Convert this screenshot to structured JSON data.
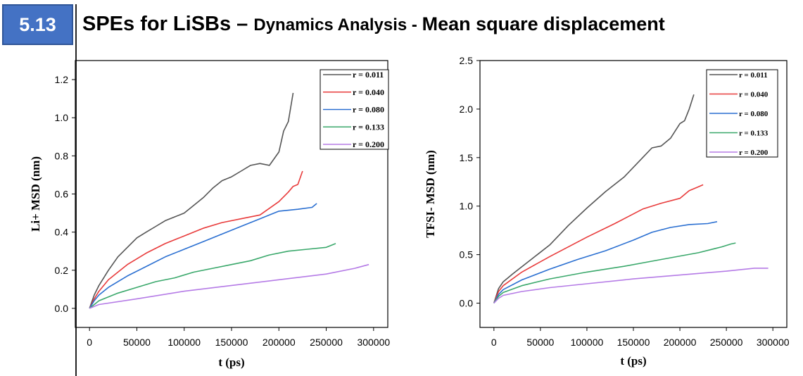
{
  "slide": {
    "number": "5.13",
    "title_main": "SPEs for LiSBs",
    "title_dash": " – ",
    "title_sub": "Dynamics Analysis - ",
    "title_topic": " Mean square displacement"
  },
  "colors": {
    "badge": "#4472c4",
    "r0011": "#555555",
    "r0040": "#e83b3b",
    "r0080": "#2a6fd1",
    "r0133": "#3aa86b",
    "r0200": "#b57be6"
  },
  "chart_data": [
    {
      "type": "line",
      "title": "",
      "xlabel": "t (ps)",
      "ylabel": "Li+ MSD (nm)",
      "xlim": [
        -15000,
        315000
      ],
      "ylim": [
        -0.1,
        1.3
      ],
      "xticks": [
        0,
        50000,
        100000,
        150000,
        200000,
        250000,
        300000
      ],
      "xtick_labels": [
        "0",
        "50000",
        "100000",
        "150000",
        "200000",
        "250000",
        "300000"
      ],
      "yticks": [
        0.0,
        0.2,
        0.4,
        0.6,
        0.8,
        1.0,
        1.2
      ],
      "ytick_labels": [
        "0.0",
        "0.2",
        "0.4",
        "0.6",
        "0.8",
        "1.0",
        "1.2"
      ],
      "grid": false,
      "legend_position": "top-right",
      "series": [
        {
          "name": "r = 0.011",
          "x": [
            0,
            5000,
            10000,
            20000,
            30000,
            40000,
            50000,
            60000,
            70000,
            80000,
            90000,
            100000,
            110000,
            120000,
            130000,
            140000,
            150000,
            160000,
            170000,
            180000,
            190000,
            200000,
            205000,
            210000,
            215000
          ],
          "y": [
            0.0,
            0.07,
            0.12,
            0.2,
            0.27,
            0.32,
            0.37,
            0.4,
            0.43,
            0.46,
            0.48,
            0.5,
            0.54,
            0.58,
            0.63,
            0.67,
            0.69,
            0.72,
            0.75,
            0.76,
            0.75,
            0.82,
            0.93,
            0.98,
            1.13
          ]
        },
        {
          "name": "r = 0.040",
          "x": [
            0,
            5000,
            10000,
            20000,
            40000,
            60000,
            80000,
            100000,
            120000,
            140000,
            160000,
            180000,
            200000,
            210000,
            215000,
            220000,
            225000
          ],
          "y": [
            0.0,
            0.05,
            0.09,
            0.15,
            0.23,
            0.29,
            0.34,
            0.38,
            0.42,
            0.45,
            0.47,
            0.49,
            0.56,
            0.61,
            0.64,
            0.65,
            0.72
          ]
        },
        {
          "name": "r = 0.080",
          "x": [
            0,
            5000,
            10000,
            20000,
            40000,
            60000,
            80000,
            100000,
            120000,
            140000,
            160000,
            180000,
            200000,
            220000,
            235000,
            240000
          ],
          "y": [
            0.0,
            0.04,
            0.07,
            0.11,
            0.17,
            0.22,
            0.27,
            0.31,
            0.35,
            0.39,
            0.43,
            0.47,
            0.51,
            0.52,
            0.53,
            0.55
          ]
        },
        {
          "name": "r = 0.133",
          "x": [
            0,
            10000,
            30000,
            50000,
            70000,
            90000,
            110000,
            130000,
            150000,
            170000,
            190000,
            210000,
            230000,
            250000,
            260000
          ],
          "y": [
            0.0,
            0.04,
            0.08,
            0.11,
            0.14,
            0.16,
            0.19,
            0.21,
            0.23,
            0.25,
            0.28,
            0.3,
            0.31,
            0.32,
            0.34
          ]
        },
        {
          "name": "r = 0.200",
          "x": [
            0,
            10000,
            50000,
            100000,
            150000,
            200000,
            250000,
            280000,
            295000
          ],
          "y": [
            0.0,
            0.02,
            0.05,
            0.09,
            0.12,
            0.15,
            0.18,
            0.21,
            0.23
          ]
        }
      ]
    },
    {
      "type": "line",
      "title": "",
      "xlabel": "t (ps)",
      "ylabel": "TFSI- MSD (nm)",
      "xlim": [
        -15000,
        315000
      ],
      "ylim": [
        -0.25,
        2.5
      ],
      "xticks": [
        0,
        50000,
        100000,
        150000,
        200000,
        250000,
        300000
      ],
      "xtick_labels": [
        "0",
        "50000",
        "100000",
        "150000",
        "200000",
        "250000",
        "300000"
      ],
      "yticks": [
        0.0,
        0.5,
        1.0,
        1.5,
        2.0,
        2.5
      ],
      "ytick_labels": [
        "0.0",
        "0.5",
        "1.0",
        "1.5",
        "2.0",
        "2.5"
      ],
      "grid": false,
      "legend_position": "top-right",
      "series": [
        {
          "name": "r = 0.011",
          "x": [
            0,
            5000,
            10000,
            20000,
            40000,
            60000,
            80000,
            100000,
            120000,
            140000,
            160000,
            170000,
            180000,
            190000,
            200000,
            205000,
            210000,
            215000
          ],
          "y": [
            0.0,
            0.15,
            0.22,
            0.3,
            0.45,
            0.6,
            0.8,
            0.98,
            1.15,
            1.3,
            1.5,
            1.6,
            1.62,
            1.7,
            1.85,
            1.88,
            2.0,
            2.15
          ]
        },
        {
          "name": "r = 0.040",
          "x": [
            0,
            5000,
            10000,
            30000,
            60000,
            100000,
            130000,
            160000,
            180000,
            200000,
            210000,
            220000,
            225000
          ],
          "y": [
            0.0,
            0.12,
            0.18,
            0.32,
            0.48,
            0.68,
            0.82,
            0.97,
            1.03,
            1.08,
            1.16,
            1.2,
            1.22
          ]
        },
        {
          "name": "r = 0.080",
          "x": [
            0,
            5000,
            10000,
            30000,
            60000,
            90000,
            120000,
            150000,
            170000,
            190000,
            210000,
            230000,
            240000
          ],
          "y": [
            0.0,
            0.09,
            0.14,
            0.24,
            0.35,
            0.45,
            0.54,
            0.65,
            0.73,
            0.78,
            0.81,
            0.82,
            0.84
          ]
        },
        {
          "name": "r = 0.133",
          "x": [
            0,
            5000,
            10000,
            30000,
            60000,
            100000,
            140000,
            180000,
            220000,
            245000,
            255000,
            260000
          ],
          "y": [
            0.0,
            0.07,
            0.11,
            0.18,
            0.25,
            0.32,
            0.38,
            0.45,
            0.52,
            0.58,
            0.61,
            0.62
          ]
        },
        {
          "name": "r = 0.200",
          "x": [
            0,
            5000,
            10000,
            30000,
            60000,
            100000,
            150000,
            200000,
            250000,
            280000,
            295000
          ],
          "y": [
            0.0,
            0.05,
            0.08,
            0.12,
            0.16,
            0.2,
            0.25,
            0.29,
            0.33,
            0.36,
            0.36
          ]
        }
      ]
    }
  ]
}
